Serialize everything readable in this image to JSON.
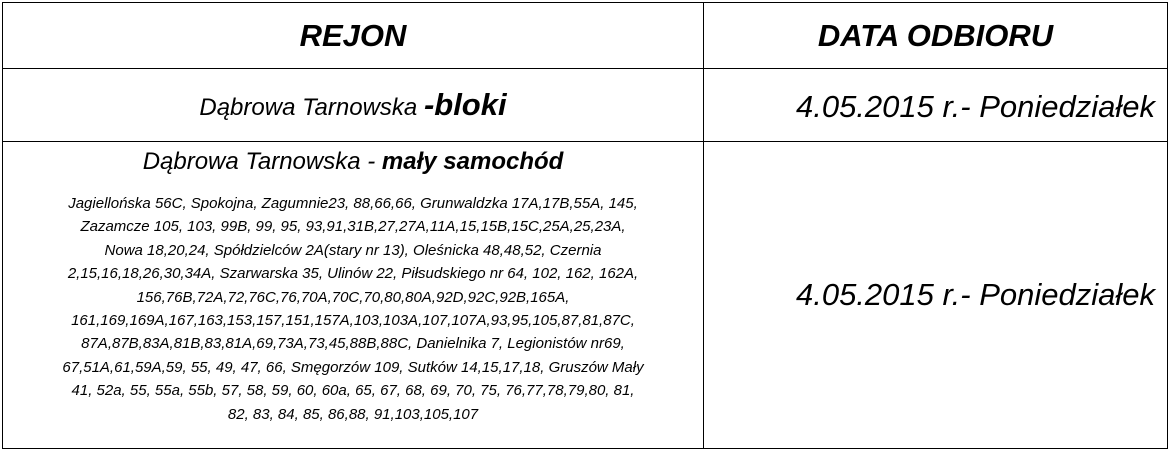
{
  "table": {
    "header": [
      "REJON",
      "DATA ODBIORU"
    ],
    "rows": [
      {
        "region": "Dąbrowa Tarnowska",
        "region_bold": "-bloki",
        "date": "4.05.2015 r.- Poniedziałek"
      },
      {
        "region": "Dąbrowa Tarnowska -",
        "region_bold": "mały samochód",
        "addresses": [
          "Jagiellońska 56C, Spokojna, Zagumnie23, 88,66,66, Grunwaldzka 17A,17B,55A, 145,",
          "Zazamcze 105, 103, 99B, 99, 95, 93,91,31B,27,27A,11A,15,15B,15C,25A,25,23A,",
          "Nowa 18,20,24, Spółdzielców 2A(stary nr 13), Oleśnicka 48,48,52, Czernia",
          "2,15,16,18,26,30,34A, Szarwarska 35, Ulinów 22, Piłsudskiego nr 64, 102, 162, 162A,",
          "156,76B,72A,72,76C,76,70A,70C,70,80,80A,92D,92C,92B,165A,",
          "161,169,169A,167,163,153,157,151,157A,103,103A,107,107A,93,95,105,87,81,87C,",
          "87A,87B,83A,81B,83,81A,69,73A,73,45,88B,88C, Danielnika 7, Legionistów nr69,",
          "67,51A,61,59A,59, 55, 49, 47, 66, Smęgorzów 109, Sutków 14,15,17,18, Gruszów Mały",
          "41, 52a, 55, 55a, 55b, 57, 58, 59, 60, 60a, 65, 67, 68, 69, 70, 75, 76,77,78,79,80, 81,",
          "82, 83, 84, 85, 86,88, 91,103,105,107"
        ],
        "date": "4.05.2015 r.- Poniedziałek"
      }
    ]
  }
}
